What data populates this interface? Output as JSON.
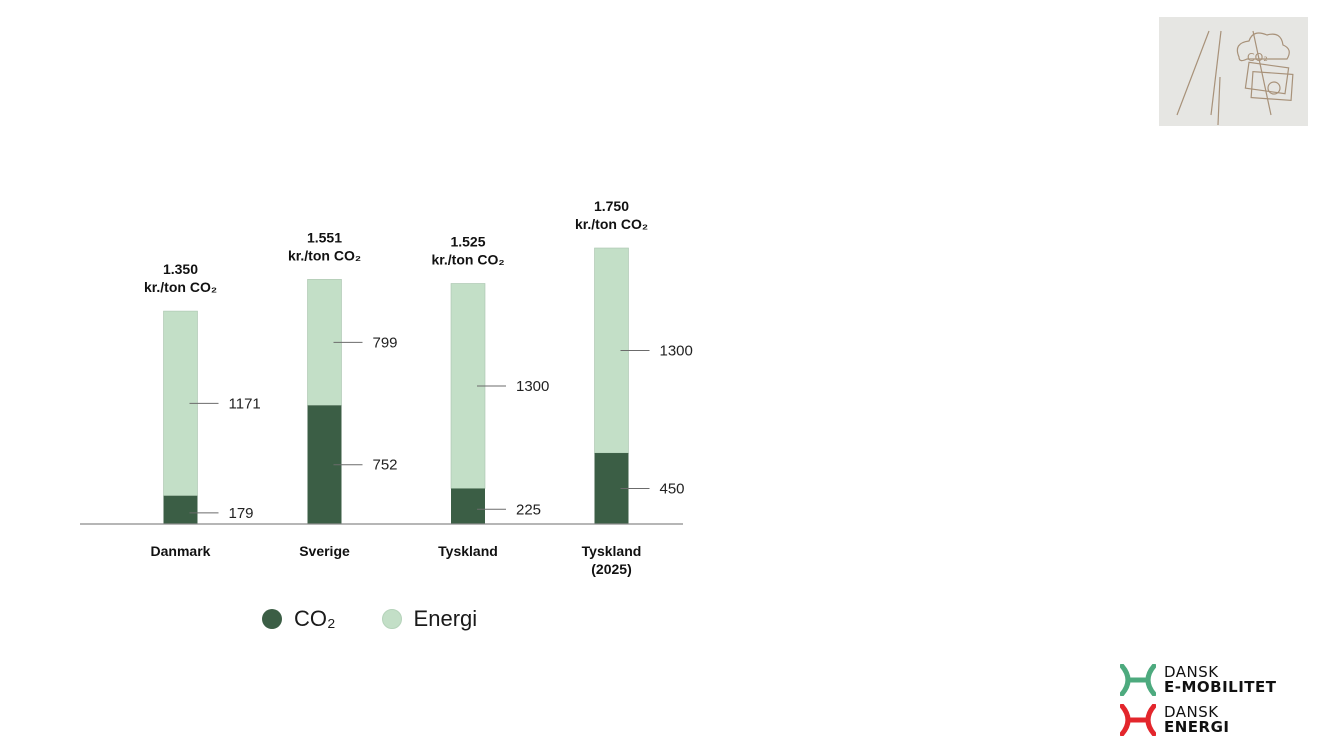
{
  "chart_data": {
    "type": "bar",
    "stacked": true,
    "categories": [
      "Danmark",
      "Sverige",
      "Tyskland",
      "Tyskland (2025)"
    ],
    "category_lines": [
      [
        "Danmark"
      ],
      [
        "Sverige"
      ],
      [
        "Tyskland"
      ],
      [
        "Tyskland",
        "(2025)"
      ]
    ],
    "series": [
      {
        "name": "CO₂",
        "values": [
          179,
          752,
          225,
          450
        ],
        "color": "#3b5e45"
      },
      {
        "name": "Energi",
        "values": [
          1171,
          799,
          1300,
          1300
        ],
        "color": "#c3dfc7"
      }
    ],
    "totals": [
      {
        "value": "1.350",
        "unit": "kr./ton CO₂"
      },
      {
        "value": "1.551",
        "unit": "kr./ton CO₂"
      },
      {
        "value": "1.525",
        "unit": "kr./ton CO₂"
      },
      {
        "value": "1.750",
        "unit": "kr./ton CO₂"
      }
    ],
    "ylim": [
      0,
      1750
    ],
    "legend_position": "bottom",
    "grid": false
  },
  "legend": {
    "co2_label": "CO₂",
    "energi_label": "Energi"
  },
  "icon": {
    "name": "co2-money-road-icon",
    "text": "CO₂"
  },
  "logos": [
    {
      "name": "dansk-e-mobilitet-logo",
      "line1": "DANSK",
      "line2": "E-MOBILITET",
      "color": "#4daa7e"
    },
    {
      "name": "dansk-energi-logo",
      "line1": "DANSK",
      "line2": "ENERGI",
      "color": "#e3262c"
    }
  ]
}
